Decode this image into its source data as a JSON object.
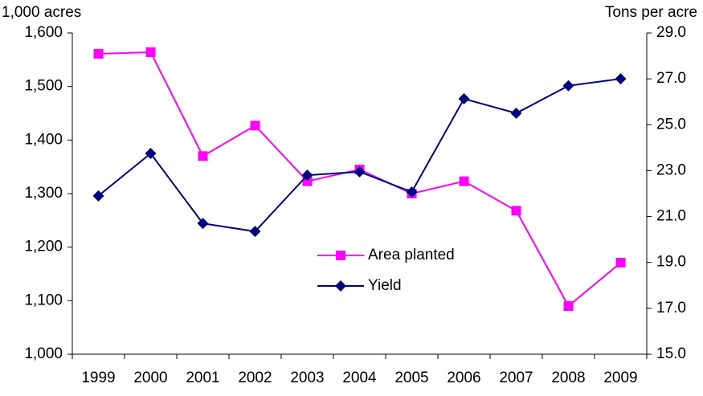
{
  "chart_data": {
    "type": "line",
    "y_label": "1,000 acres",
    "y2_label": "Tons per acre",
    "categories": [
      "1999",
      "2000",
      "2001",
      "2002",
      "2003",
      "2004",
      "2005",
      "2006",
      "2007",
      "2008",
      "2009"
    ],
    "series": [
      {
        "name": "Area planted",
        "color": "#ff00ff",
        "marker": "square",
        "values": [
          1561,
          1564,
          1370,
          1427,
          1323,
          1345,
          1300,
          1323,
          1268,
          1090,
          1171
        ]
      },
      {
        "name": "Yield",
        "color": "#000080",
        "marker": "diamond",
        "axis": "y2",
        "values": [
          21.9,
          23.75,
          20.7,
          20.35,
          22.8,
          22.95,
          22.07,
          26.13,
          25.5,
          26.7,
          27.0
        ]
      }
    ],
    "ylim": [
      1000,
      1600
    ],
    "yticks": [
      {
        "value": 1000,
        "label": "1,000"
      },
      {
        "value": 1100,
        "label": "1,100"
      },
      {
        "value": 1200,
        "label": "1,200"
      },
      {
        "value": 1300,
        "label": "1,300"
      },
      {
        "value": 1400,
        "label": "1,400"
      },
      {
        "value": 1500,
        "label": "1,500"
      },
      {
        "value": 1600,
        "label": "1,600"
      }
    ],
    "y2lim": [
      15,
      29
    ],
    "y2ticks": [
      {
        "value": 15,
        "label": "15.0"
      },
      {
        "value": 17,
        "label": "17.0"
      },
      {
        "value": 19,
        "label": "19.0"
      },
      {
        "value": 21,
        "label": "21.0"
      },
      {
        "value": 23,
        "label": "23.0"
      },
      {
        "value": 25,
        "label": "25.0"
      },
      {
        "value": 27,
        "label": "27.0"
      },
      {
        "value": 29,
        "label": "29.0"
      }
    ],
    "grid": false
  }
}
